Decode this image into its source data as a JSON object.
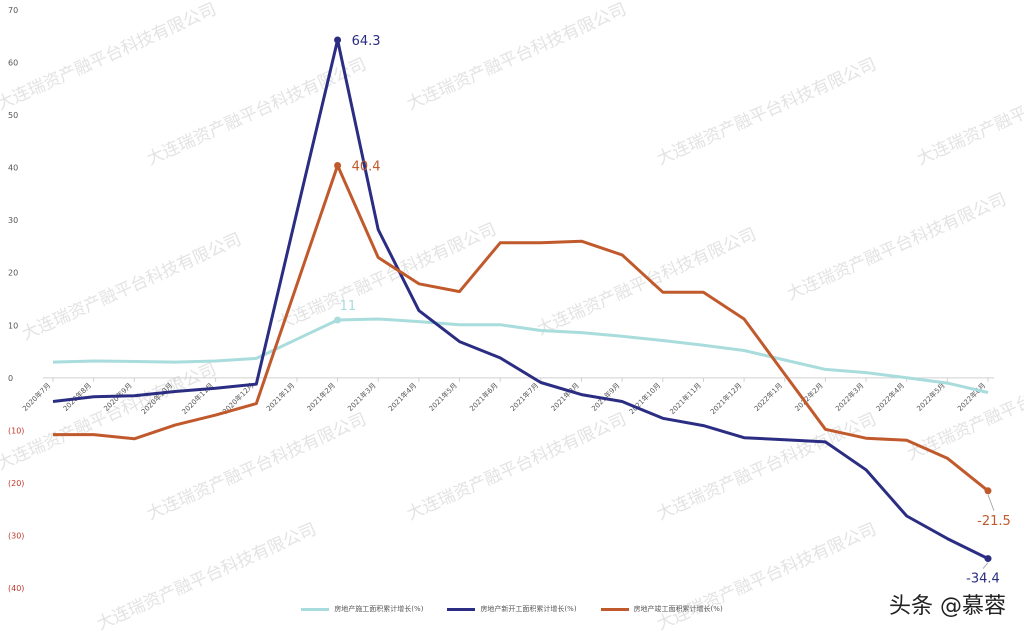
{
  "chart_data": {
    "type": "line",
    "categories": [
      "2020年7月",
      "2020年8月",
      "2020年9月",
      "2020年10月",
      "2020年11月",
      "2020年12月",
      "2021年1月",
      "2021年2月",
      "2021年3月",
      "2021年4月",
      "2021年5月",
      "2021年6月",
      "2021年7月",
      "2021年8月",
      "2021年9月",
      "2021年10月",
      "2021年11月",
      "2021年12月",
      "2022年1月",
      "2022年2月",
      "2022年3月",
      "2022年4月",
      "2022年5月",
      "2022年6月"
    ],
    "y_ticks": [
      {
        "value": 70,
        "label": "70"
      },
      {
        "value": 60,
        "label": "60"
      },
      {
        "value": 50,
        "label": "50"
      },
      {
        "value": 40,
        "label": "40"
      },
      {
        "value": 30,
        "label": "30"
      },
      {
        "value": 20,
        "label": "20"
      },
      {
        "value": 10,
        "label": "10"
      },
      {
        "value": 0,
        "label": "0"
      },
      {
        "value": -10,
        "label": "(10)"
      },
      {
        "value": -20,
        "label": "(20)"
      },
      {
        "value": -30,
        "label": "(30)"
      },
      {
        "value": -40,
        "label": "(40)"
      }
    ],
    "ylim": [
      -40,
      70
    ],
    "series": [
      {
        "name": "房地产施工面积累计增长(%)",
        "color": "#a9dcdc",
        "values": [
          3.0,
          3.2,
          3.1,
          3.0,
          3.2,
          3.7,
          null,
          11.0,
          11.2,
          10.7,
          10.1,
          10.1,
          9.0,
          8.6,
          7.9,
          7.1,
          6.2,
          5.2,
          null,
          1.6,
          1.0,
          0.0,
          -1.0,
          -2.8
        ],
        "labels": [
          {
            "index": 7,
            "text": "11"
          }
        ]
      },
      {
        "name": "房地产新开工面积累计增长(%)",
        "color": "#2b2d83",
        "values": [
          -4.5,
          -3.6,
          -3.4,
          -2.6,
          -2.0,
          -1.2,
          null,
          64.3,
          28.2,
          12.8,
          6.9,
          3.8,
          -0.9,
          -3.2,
          -4.5,
          -7.7,
          -9.1,
          -11.4,
          null,
          -12.2,
          -17.5,
          -26.3,
          -30.6,
          -34.4
        ],
        "labels": [
          {
            "index": 7,
            "text": "64.3"
          },
          {
            "index": 23,
            "text": "-34.4"
          }
        ]
      },
      {
        "name": "房地产竣工面积累计增长(%)",
        "color": "#c05a2c",
        "values": [
          -10.8,
          -10.8,
          -11.6,
          -9.0,
          -7.1,
          -4.9,
          null,
          40.4,
          22.9,
          17.9,
          16.4,
          25.7,
          25.7,
          26.0,
          23.4,
          16.3,
          16.3,
          11.2,
          null,
          -9.8,
          -11.5,
          -11.9,
          -15.3,
          -21.5
        ],
        "labels": [
          {
            "index": 7,
            "text": "40.4"
          },
          {
            "index": 23,
            "text": "-21.5"
          }
        ]
      }
    ],
    "grid": false,
    "legend_position": "bottom"
  },
  "watermark": {
    "text": "大连瑞资产融平台科技有限公司",
    "brand": "头条 @慕蓉"
  }
}
